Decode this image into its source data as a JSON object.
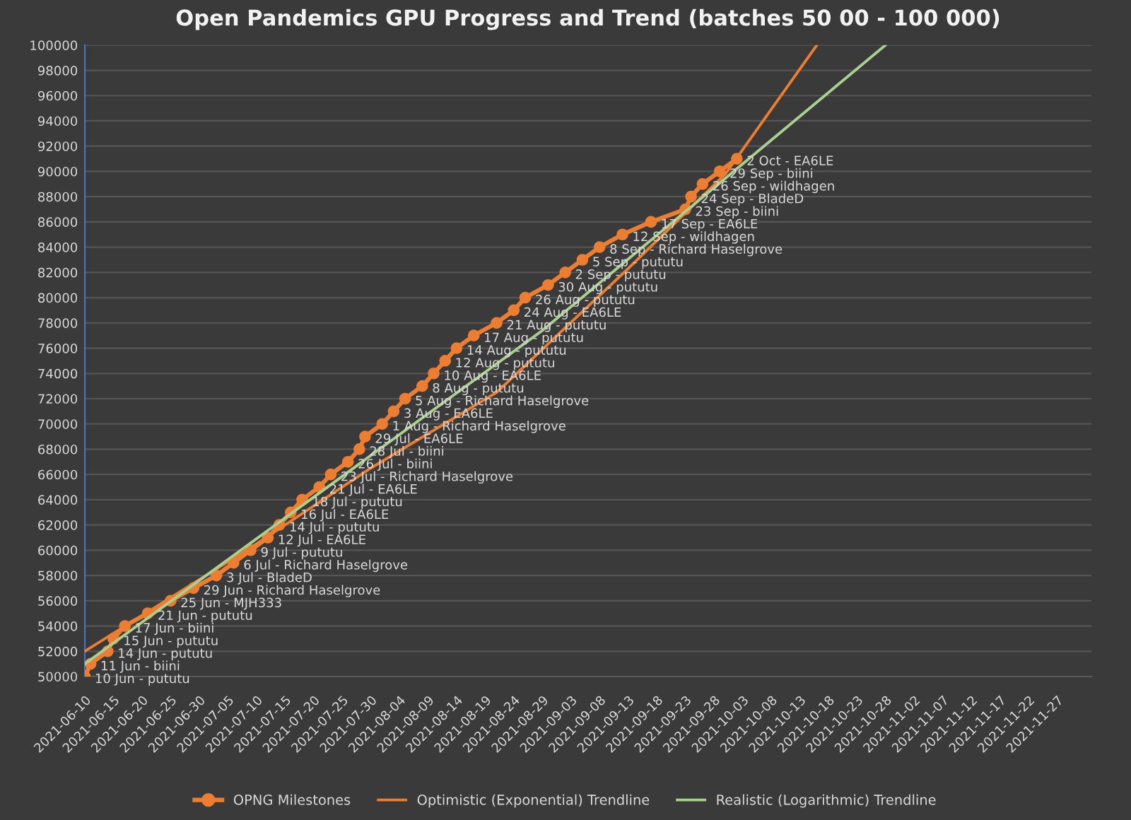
{
  "chart_data": {
    "type": "line",
    "title": "Open Pandemics GPU Progress and Trend (batches 50 00 - 100 000)",
    "series": [
      {
        "name": "OPNG Milestones",
        "color": "#ed7d31",
        "marker": "circle",
        "line_style": "solid",
        "x": [
          "2021-06-10",
          "2021-06-11",
          "2021-06-14",
          "2021-06-15",
          "2021-06-17",
          "2021-06-21",
          "2021-06-25",
          "2021-06-29",
          "2021-07-03",
          "2021-07-06",
          "2021-07-09",
          "2021-07-12",
          "2021-07-14",
          "2021-07-16",
          "2021-07-18",
          "2021-07-21",
          "2021-07-23",
          "2021-07-26",
          "2021-07-28",
          "2021-07-29",
          "2021-08-01",
          "2021-08-03",
          "2021-08-05",
          "2021-08-08",
          "2021-08-10",
          "2021-08-12",
          "2021-08-14",
          "2021-08-17",
          "2021-08-21",
          "2021-08-24",
          "2021-08-26",
          "2021-08-30",
          "2021-09-02",
          "2021-09-05",
          "2021-09-08",
          "2021-09-12",
          "2021-09-17",
          "2021-09-23",
          "2021-09-24",
          "2021-09-26",
          "2021-09-29",
          "2021-10-02"
        ],
        "values": [
          50000,
          51000,
          52000,
          53000,
          54000,
          55000,
          56000,
          57000,
          58000,
          59000,
          60000,
          61000,
          62000,
          63000,
          64000,
          65000,
          66000,
          67000,
          68000,
          69000,
          70000,
          71000,
          72000,
          73000,
          74000,
          75000,
          76000,
          77000,
          78000,
          79000,
          80000,
          81000,
          82000,
          83000,
          84000,
          85000,
          86000,
          87000,
          88000,
          89000,
          90000,
          91000
        ]
      },
      {
        "name": "Optimistic (Exponential) Trendline",
        "color": "#ed7d31",
        "marker": "none",
        "line_style": "solid",
        "x": [
          "2021-06-10",
          "2021-07-10",
          "2021-07-30",
          "2021-08-21",
          "2021-09-13",
          "2021-09-30",
          "2021-10-16"
        ],
        "values": [
          52000,
          60500,
          66500,
          72500,
          82300,
          89800,
          100000
        ]
      },
      {
        "name": "Realistic (Logarithmic) Trendline",
        "color": "#a9d18e",
        "marker": "none",
        "line_style": "solid",
        "x": [
          "2021-06-10",
          "2021-07-20",
          "2021-08-29",
          "2021-10-28"
        ],
        "values": [
          51000,
          64200,
          77400,
          100000
        ]
      }
    ],
    "annotations": [
      {
        "text": "10 Jun - pututu",
        "x": "2021-06-10",
        "y": 50000
      },
      {
        "text": "11 Jun - biini",
        "x": "2021-06-11",
        "y": 51000
      },
      {
        "text": "14 Jun - pututu",
        "x": "2021-06-14",
        "y": 52000
      },
      {
        "text": "15 Jun - pututu",
        "x": "2021-06-15",
        "y": 53000
      },
      {
        "text": "17 Jun - biini",
        "x": "2021-06-17",
        "y": 54000
      },
      {
        "text": "21 Jun - pututu",
        "x": "2021-06-21",
        "y": 55000
      },
      {
        "text": "25 Jun - MJH333",
        "x": "2021-06-25",
        "y": 56000
      },
      {
        "text": "29 Jun - Richard Haselgrove",
        "x": "2021-06-29",
        "y": 57000
      },
      {
        "text": "3 Jul - BladeD",
        "x": "2021-07-03",
        "y": 58000
      },
      {
        "text": "6 Jul - Richard Haselgrove",
        "x": "2021-07-06",
        "y": 59000
      },
      {
        "text": "9 Jul - pututu",
        "x": "2021-07-09",
        "y": 60000
      },
      {
        "text": "12 Jul - EA6LE",
        "x": "2021-07-12",
        "y": 61000
      },
      {
        "text": "14 Jul - pututu",
        "x": "2021-07-14",
        "y": 62000
      },
      {
        "text": "16 Jul - EA6LE",
        "x": "2021-07-16",
        "y": 63000
      },
      {
        "text": "18 Jul - pututu",
        "x": "2021-07-18",
        "y": 64000
      },
      {
        "text": "21 Jul - EA6LE",
        "x": "2021-07-21",
        "y": 65000
      },
      {
        "text": "23 Jul - Richard Haselgrove",
        "x": "2021-07-23",
        "y": 66000
      },
      {
        "text": "26 Jul - biini",
        "x": "2021-07-26",
        "y": 67000
      },
      {
        "text": "28 Jul - biini",
        "x": "2021-07-28",
        "y": 68000
      },
      {
        "text": "29 Jul - EA6LE",
        "x": "2021-07-29",
        "y": 69000
      },
      {
        "text": "1 Aug - Richard Haselgrove",
        "x": "2021-08-01",
        "y": 70000
      },
      {
        "text": "3 Aug - EA6LE",
        "x": "2021-08-03",
        "y": 71000
      },
      {
        "text": "5 Aug - Richard Haselgrove",
        "x": "2021-08-05",
        "y": 72000
      },
      {
        "text": "8 Aug - pututu",
        "x": "2021-08-08",
        "y": 73000
      },
      {
        "text": "10 Aug - EA6LE",
        "x": "2021-08-10",
        "y": 74000
      },
      {
        "text": "12 Aug - pututu",
        "x": "2021-08-12",
        "y": 75000
      },
      {
        "text": "14 Aug - pututu",
        "x": "2021-08-14",
        "y": 76000
      },
      {
        "text": "17 Aug - pututu",
        "x": "2021-08-17",
        "y": 77000
      },
      {
        "text": "21 Aug - pututu",
        "x": "2021-08-21",
        "y": 78000
      },
      {
        "text": "24 Aug - EA6LE",
        "x": "2021-08-24",
        "y": 79000
      },
      {
        "text": "26 Aug - pututu",
        "x": "2021-08-26",
        "y": 80000
      },
      {
        "text": "30 Aug - pututu",
        "x": "2021-08-30",
        "y": 81000
      },
      {
        "text": "2 Sep - pututu",
        "x": "2021-09-02",
        "y": 82000
      },
      {
        "text": "5 Sep - pututu",
        "x": "2021-09-05",
        "y": 83000
      },
      {
        "text": "8 Sep - Richard Haselgrove",
        "x": "2021-09-08",
        "y": 84000
      },
      {
        "text": "12 Sep - wildhagen",
        "x": "2021-09-12",
        "y": 85000
      },
      {
        "text": "17 Sep - EA6LE",
        "x": "2021-09-17",
        "y": 86000
      },
      {
        "text": "23 Sep - biini",
        "x": "2021-09-23",
        "y": 87000
      },
      {
        "text": "24 Sep - BladeD",
        "x": "2021-09-24",
        "y": 88000
      },
      {
        "text": "26 Sep - wildhagen",
        "x": "2021-09-26",
        "y": 89000
      },
      {
        "text": "29 Sep - biini",
        "x": "2021-09-29",
        "y": 90000
      },
      {
        "text": "2 Oct - EA6LE",
        "x": "2021-10-02",
        "y": 91000
      }
    ],
    "xlim": [
      "2021-06-10",
      "2021-12-03"
    ],
    "xticks": [
      "2021-06-10",
      "2021-06-15",
      "2021-06-20",
      "2021-06-25",
      "2021-06-30",
      "2021-07-05",
      "2021-07-10",
      "2021-07-15",
      "2021-07-20",
      "2021-07-25",
      "2021-07-30",
      "2021-08-04",
      "2021-08-09",
      "2021-08-14",
      "2021-08-19",
      "2021-08-24",
      "2021-08-29",
      "2021-09-03",
      "2021-09-08",
      "2021-09-13",
      "2021-09-18",
      "2021-09-23",
      "2021-09-28",
      "2021-10-03",
      "2021-10-08",
      "2021-10-13",
      "2021-10-18",
      "2021-10-23",
      "2021-10-28",
      "2021-11-02",
      "2021-11-07",
      "2021-11-12",
      "2021-11-17",
      "2021-11-22",
      "2021-11-27"
    ],
    "ylim": [
      50000,
      100000
    ],
    "yticks": [
      50000,
      52000,
      54000,
      56000,
      58000,
      60000,
      62000,
      64000,
      66000,
      68000,
      70000,
      72000,
      74000,
      76000,
      78000,
      80000,
      82000,
      84000,
      86000,
      88000,
      90000,
      92000,
      94000,
      96000,
      98000,
      100000
    ],
    "grid": "y",
    "legend": "bottom"
  }
}
